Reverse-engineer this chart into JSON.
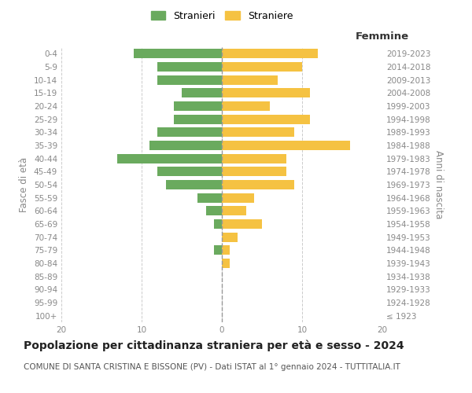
{
  "age_groups": [
    "100+",
    "95-99",
    "90-94",
    "85-89",
    "80-84",
    "75-79",
    "70-74",
    "65-69",
    "60-64",
    "55-59",
    "50-54",
    "45-49",
    "40-44",
    "35-39",
    "30-34",
    "25-29",
    "20-24",
    "15-19",
    "10-14",
    "5-9",
    "0-4"
  ],
  "birth_years": [
    "≤ 1923",
    "1924-1928",
    "1929-1933",
    "1934-1938",
    "1939-1943",
    "1944-1948",
    "1949-1953",
    "1954-1958",
    "1959-1963",
    "1964-1968",
    "1969-1973",
    "1974-1978",
    "1979-1983",
    "1984-1988",
    "1989-1993",
    "1994-1998",
    "1999-2003",
    "2004-2008",
    "2009-2013",
    "2014-2018",
    "2019-2023"
  ],
  "males": [
    0,
    0,
    0,
    0,
    0,
    1,
    0,
    1,
    2,
    3,
    7,
    8,
    13,
    9,
    8,
    6,
    6,
    5,
    8,
    8,
    11
  ],
  "females": [
    0,
    0,
    0,
    0,
    1,
    1,
    2,
    5,
    3,
    4,
    9,
    8,
    8,
    16,
    9,
    11,
    6,
    11,
    7,
    10,
    12
  ],
  "male_color": "#6aaa5e",
  "female_color": "#f5c242",
  "background_color": "#ffffff",
  "grid_color": "#cccccc",
  "title": "Popolazione per cittadinanza straniera per età e sesso - 2024",
  "subtitle": "COMUNE DI SANTA CRISTINA E BISSONE (PV) - Dati ISTAT al 1° gennaio 2024 - TUTTITALIA.IT",
  "ylabel_left": "Fasce di età",
  "ylabel_right": "Anni di nascita",
  "xlabel_right": "Femmine",
  "legend_stranieri": "Stranieri",
  "legend_straniere": "Straniere",
  "xlim": 20,
  "title_fontsize": 10,
  "subtitle_fontsize": 7.5,
  "axis_label_fontsize": 8.5,
  "tick_fontsize": 7.5
}
